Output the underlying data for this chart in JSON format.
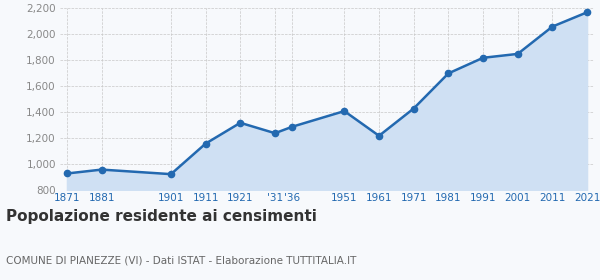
{
  "years": [
    1871,
    1881,
    1901,
    1911,
    1921,
    1931,
    1936,
    1951,
    1961,
    1971,
    1981,
    1991,
    2001,
    2011,
    2021
  ],
  "population": [
    930,
    960,
    925,
    1160,
    1320,
    1240,
    1290,
    1410,
    1220,
    1430,
    1700,
    1820,
    1850,
    2060,
    2170
  ],
  "x_tick_labels": [
    "1871",
    "1881",
    "1901",
    "1911",
    "1921",
    "'31",
    "'36",
    "1951",
    "1961",
    "1971",
    "1981",
    "1991",
    "2001",
    "2011",
    "2021"
  ],
  "ylim": [
    800,
    2200
  ],
  "yticks": [
    800,
    1000,
    1200,
    1400,
    1600,
    1800,
    2000,
    2200
  ],
  "line_color": "#2369b0",
  "fill_color": "#cfe0f3",
  "marker_size": 4.5,
  "line_width": 1.8,
  "bg_color": "#f7f9fc",
  "grid_color": "#c8c8c8",
  "tick_label_color": "#2369b0",
  "ytick_label_color": "#888888",
  "title": "Popolazione residente ai censimenti",
  "subtitle": "COMUNE DI PIANEZZE (VI) - Dati ISTAT - Elaborazione TUTTITALIA.IT",
  "title_fontsize": 11,
  "subtitle_fontsize": 7.5
}
